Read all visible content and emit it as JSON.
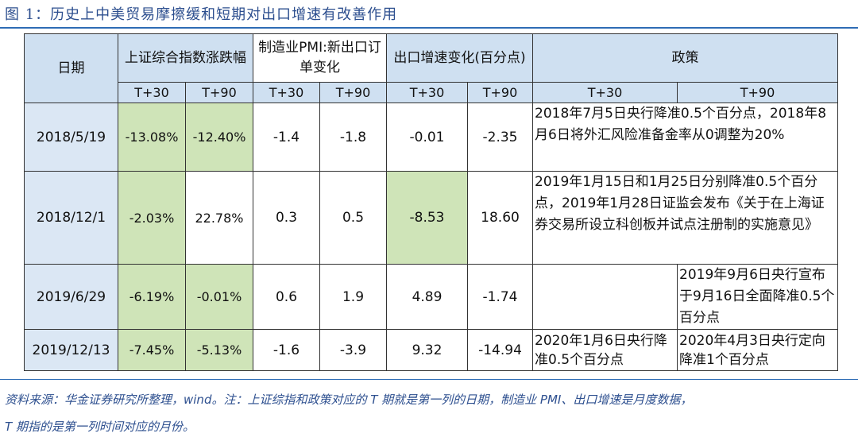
{
  "title": "图 1：历史上中美贸易摩擦缓和短期对出口增速有改善作用",
  "headers": {
    "date": "日期",
    "index": "上证综合指数涨跌幅",
    "pmi": "制造业PMI:新出口订单变化",
    "export": "出口增速变化(百分点)",
    "policy": "政策",
    "t30": "T+30",
    "t90": "T+90"
  },
  "rows": [
    {
      "date": "2018/5/19",
      "idx30": "-13.08%",
      "idx90": "-12.40%",
      "pmi30": "-1.4",
      "pmi90": "-1.8",
      "exp30": "-0.01",
      "exp90": "-2.35",
      "policy": "2018年7月5日央行降准0.5个百分点，2018年8月6日将外汇风险准备金率从0调整为20%",
      "p30": "",
      "p90": ""
    },
    {
      "date": "2018/12/1",
      "idx30": "-2.03%",
      "idx90": "22.78%",
      "pmi30": "0.3",
      "pmi90": "0.5",
      "exp30": "-8.53",
      "exp90": "18.60",
      "policy": "2019年1月15日和1月25日分别降准0.5个百分点，2019年1月28日证监会发布《关于在上海证券交易所设立科创板并试点注册制的实施意见》",
      "p30": "",
      "p90": ""
    },
    {
      "date": "2019/6/29",
      "idx30": "-6.19%",
      "idx90": "-0.01%",
      "pmi30": "0.6",
      "pmi90": "1.9",
      "exp30": "4.89",
      "exp90": "-1.74",
      "policy": "",
      "p30": "",
      "p90": "2019年9月6日央行宣布于9月16日全面降准0.5个百分点"
    },
    {
      "date": "2019/12/13",
      "idx30": "-7.45%",
      "idx90": "-5.13%",
      "pmi30": "-1.6",
      "pmi90": "-3.9",
      "exp30": "9.32",
      "exp90": "-14.94",
      "policy": "",
      "p30": "2020年1月6日央行降准0.5个百分点",
      "p90": "2020年4月3日央行定向降准1个百分点"
    }
  ],
  "footnote_1": "资料来源：华金证券研究所整理，wind。注：上证综指和政策对应的 T 期就是第一列的日期，制造业 PMI、出口增速是月度数据，",
  "footnote_2": "T 期指的是第一列时间对应的月份。"
}
